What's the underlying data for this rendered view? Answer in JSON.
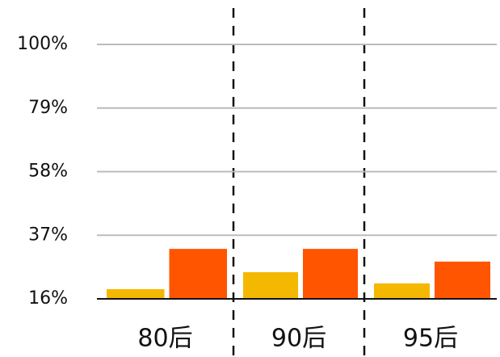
{
  "chart_data": {
    "type": "bar",
    "categories": [
      "80后",
      "90后",
      "95后"
    ],
    "series": [
      {
        "color": "#f5b800",
        "values": [
          19.2,
          24.8,
          21.1
        ]
      },
      {
        "color": "#ff5500",
        "values": [
          32.5,
          32.5,
          28.3
        ]
      }
    ],
    "ylim": [
      16,
      100
    ],
    "yticks": [
      {
        "value": 16,
        "label": "16%"
      },
      {
        "value": 37,
        "label": "37%"
      },
      {
        "value": 58,
        "label": "58%"
      },
      {
        "value": 79,
        "label": "79%"
      },
      {
        "value": 100,
        "label": "100%"
      }
    ],
    "grid": true
  }
}
